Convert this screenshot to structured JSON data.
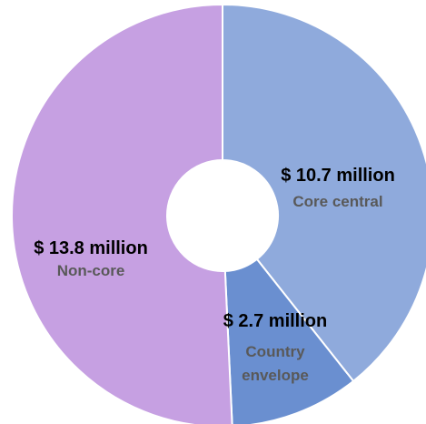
{
  "chart_data": {
    "type": "pie",
    "style": "donut",
    "slices": [
      {
        "name": "Core central",
        "value": 10.7,
        "label": "$ 10.7 million",
        "color": "#8FAADC"
      },
      {
        "name": "Country envelope",
        "value": 2.7,
        "label": "$ 2.7 million",
        "color": "#6A8FD0"
      },
      {
        "name": "Non-core",
        "value": 13.8,
        "label": "$ 13.8 million",
        "color": "#C6A0E2"
      }
    ],
    "legend": "none"
  }
}
